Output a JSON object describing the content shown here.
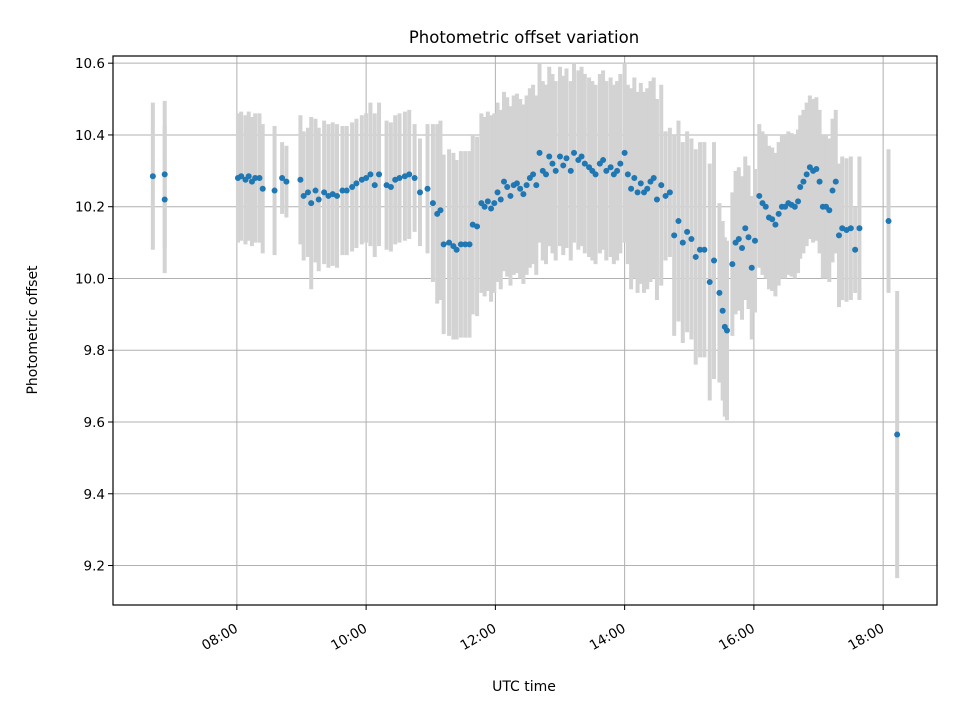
{
  "chart_data": {
    "type": "scatter",
    "title": "Photometric offset variation",
    "xlabel": "UTC time",
    "ylabel": "Photometric offset",
    "x_format": "time HH:MM",
    "xlim": [
      "06:05",
      "18:50"
    ],
    "ylim": [
      9.09,
      10.62
    ],
    "x_ticks": [
      "08:00",
      "10:00",
      "12:00",
      "14:00",
      "16:00",
      "18:00"
    ],
    "y_ticks": [
      "9.2",
      "9.4",
      "9.6",
      "9.8",
      "10.0",
      "10.2",
      "10.4",
      "10.6"
    ],
    "grid": true,
    "colors": {
      "marker": "#1f77b4",
      "errorbar": "#d3d3d3",
      "grid": "#b0b0b0"
    },
    "series": [
      {
        "points": [
          [
            "06:42",
            10.285,
            0.205
          ],
          [
            "06:53",
            10.22,
            0.205
          ],
          [
            "06:53",
            10.29,
            0.205
          ],
          [
            "08:01",
            10.28,
            0.18
          ],
          [
            "08:04",
            10.285,
            0.18
          ],
          [
            "08:08",
            10.275,
            0.18
          ],
          [
            "08:11",
            10.285,
            0.18
          ],
          [
            "08:14",
            10.27,
            0.18
          ],
          [
            "08:17",
            10.28,
            0.18
          ],
          [
            "08:21",
            10.28,
            0.18
          ],
          [
            "08:24",
            10.25,
            0.18
          ],
          [
            "08:35",
            10.245,
            0.18
          ],
          [
            "08:42",
            10.28,
            0.1
          ],
          [
            "08:46",
            10.27,
            0.1
          ],
          [
            "08:59",
            10.275,
            0.18
          ],
          [
            "09:02",
            10.23,
            0.18
          ],
          [
            "09:06",
            10.24,
            0.18
          ],
          [
            "09:09",
            10.21,
            0.24
          ],
          [
            "09:13",
            10.245,
            0.2
          ],
          [
            "09:16",
            10.22,
            0.2
          ],
          [
            "09:21",
            10.24,
            0.2
          ],
          [
            "09:25",
            10.23,
            0.2
          ],
          [
            "09:29",
            10.235,
            0.2
          ],
          [
            "09:33",
            10.23,
            0.2
          ],
          [
            "09:38",
            10.245,
            0.18
          ],
          [
            "09:42",
            10.245,
            0.18
          ],
          [
            "09:47",
            10.255,
            0.18
          ],
          [
            "09:51",
            10.265,
            0.18
          ],
          [
            "09:56",
            10.275,
            0.18
          ],
          [
            "10:00",
            10.28,
            0.18
          ],
          [
            "10:04",
            10.29,
            0.2
          ],
          [
            "10:08",
            10.26,
            0.2
          ],
          [
            "10:12",
            10.29,
            0.2
          ],
          [
            "10:19",
            10.26,
            0.18
          ],
          [
            "10:23",
            10.255,
            0.18
          ],
          [
            "10:27",
            10.275,
            0.18
          ],
          [
            "10:31",
            10.28,
            0.18
          ],
          [
            "10:36",
            10.285,
            0.18
          ],
          [
            "10:40",
            10.29,
            0.18
          ],
          [
            "10:45",
            10.28,
            0.15
          ],
          [
            "10:50",
            10.24,
            0.15
          ],
          [
            "10:57",
            10.25,
            0.18
          ],
          [
            "11:02",
            10.21,
            0.22
          ],
          [
            "11:06",
            10.18,
            0.25
          ],
          [
            "11:09",
            10.19,
            0.25
          ],
          [
            "11:12",
            10.095,
            0.25
          ],
          [
            "11:17",
            10.1,
            0.26
          ],
          [
            "11:21",
            10.09,
            0.26
          ],
          [
            "11:24",
            10.08,
            0.25
          ],
          [
            "11:28",
            10.095,
            0.26
          ],
          [
            "11:32",
            10.095,
            0.26
          ],
          [
            "11:36",
            10.095,
            0.26
          ],
          [
            "11:39",
            10.15,
            0.25
          ],
          [
            "11:43",
            10.145,
            0.25
          ],
          [
            "11:47",
            10.21,
            0.25
          ],
          [
            "11:50",
            10.2,
            0.25
          ],
          [
            "11:53",
            10.215,
            0.25
          ],
          [
            "11:56",
            10.195,
            0.26
          ],
          [
            "11:59",
            10.21,
            0.25
          ],
          [
            "12:02",
            10.24,
            0.25
          ],
          [
            "12:05",
            10.22,
            0.25
          ],
          [
            "12:08",
            10.27,
            0.25
          ],
          [
            "12:11",
            10.255,
            0.25
          ],
          [
            "12:14",
            10.23,
            0.25
          ],
          [
            "12:17",
            10.26,
            0.25
          ],
          [
            "12:20",
            10.265,
            0.25
          ],
          [
            "12:23",
            10.25,
            0.25
          ],
          [
            "12:26",
            10.235,
            0.25
          ],
          [
            "12:29",
            10.26,
            0.25
          ],
          [
            "12:32",
            10.28,
            0.25
          ],
          [
            "12:35",
            10.29,
            0.25
          ],
          [
            "12:38",
            10.26,
            0.25
          ],
          [
            "12:41",
            10.35,
            0.25
          ],
          [
            "12:44",
            10.3,
            0.25
          ],
          [
            "12:47",
            10.29,
            0.25
          ],
          [
            "12:50",
            10.34,
            0.25
          ],
          [
            "12:53",
            10.32,
            0.25
          ],
          [
            "12:56",
            10.3,
            0.25
          ],
          [
            "13:00",
            10.34,
            0.25
          ],
          [
            "13:03",
            10.315,
            0.25
          ],
          [
            "13:06",
            10.335,
            0.25
          ],
          [
            "13:10",
            10.3,
            0.25
          ],
          [
            "13:13",
            10.35,
            0.25
          ],
          [
            "13:17",
            10.33,
            0.25
          ],
          [
            "13:20",
            10.34,
            0.25
          ],
          [
            "13:23",
            10.32,
            0.25
          ],
          [
            "13:27",
            10.31,
            0.25
          ],
          [
            "13:30",
            10.3,
            0.25
          ],
          [
            "13:33",
            10.29,
            0.25
          ],
          [
            "13:37",
            10.32,
            0.25
          ],
          [
            "13:40",
            10.33,
            0.25
          ],
          [
            "13:43",
            10.3,
            0.25
          ],
          [
            "13:47",
            10.31,
            0.25
          ],
          [
            "13:50",
            10.29,
            0.25
          ],
          [
            "13:53",
            10.3,
            0.25
          ],
          [
            "13:56",
            10.32,
            0.25
          ],
          [
            "14:00",
            10.35,
            0.25
          ],
          [
            "14:03",
            10.29,
            0.25
          ],
          [
            "14:06",
            10.25,
            0.28
          ],
          [
            "14:09",
            10.28,
            0.28
          ],
          [
            "14:12",
            10.24,
            0.28
          ],
          [
            "14:15",
            10.265,
            0.28
          ],
          [
            "14:18",
            10.24,
            0.28
          ],
          [
            "14:21",
            10.25,
            0.28
          ],
          [
            "14:24",
            10.27,
            0.28
          ],
          [
            "14:27",
            10.28,
            0.28
          ],
          [
            "14:30",
            10.22,
            0.28
          ],
          [
            "14:34",
            10.26,
            0.28
          ],
          [
            "14:38",
            10.23,
            0.18
          ],
          [
            "14:42",
            10.24,
            0.18
          ],
          [
            "14:46",
            10.12,
            0.28
          ],
          [
            "14:50",
            10.16,
            0.28
          ],
          [
            "14:54",
            10.1,
            0.28
          ],
          [
            "14:58",
            10.13,
            0.28
          ],
          [
            "15:02",
            10.11,
            0.28
          ],
          [
            "15:06",
            10.06,
            0.3
          ],
          [
            "15:10",
            10.08,
            0.3
          ],
          [
            "15:14",
            10.08,
            0.3
          ],
          [
            "15:19",
            9.99,
            0.33
          ],
          [
            "15:23",
            10.05,
            0.33
          ],
          [
            "15:28",
            9.96,
            0.25
          ],
          [
            "15:31",
            9.91,
            0.25
          ],
          [
            "15:33",
            9.865,
            0.25
          ],
          [
            "15:35",
            9.855,
            0.25
          ],
          [
            "15:40",
            10.04,
            0.2
          ],
          [
            "15:43",
            10.1,
            0.2
          ],
          [
            "15:46",
            10.11,
            0.2
          ],
          [
            "15:49",
            10.085,
            0.2
          ],
          [
            "15:52",
            10.14,
            0.2
          ],
          [
            "15:55",
            10.115,
            0.2
          ],
          [
            "15:58",
            10.03,
            0.2
          ],
          [
            "16:01",
            10.105,
            0.2
          ],
          [
            "16:05",
            10.23,
            0.2
          ],
          [
            "16:08",
            10.21,
            0.2
          ],
          [
            "16:11",
            10.2,
            0.2
          ],
          [
            "16:14",
            10.17,
            0.2
          ],
          [
            "16:17",
            10.165,
            0.2
          ],
          [
            "16:20",
            10.15,
            0.2
          ],
          [
            "16:23",
            10.18,
            0.2
          ],
          [
            "16:26",
            10.2,
            0.2
          ],
          [
            "16:29",
            10.2,
            0.2
          ],
          [
            "16:32",
            10.21,
            0.2
          ],
          [
            "16:35",
            10.205,
            0.2
          ],
          [
            "16:38",
            10.2,
            0.2
          ],
          [
            "16:41",
            10.215,
            0.2
          ],
          [
            "16:43",
            10.255,
            0.2
          ],
          [
            "16:46",
            10.27,
            0.2
          ],
          [
            "16:49",
            10.29,
            0.2
          ],
          [
            "16:52",
            10.31,
            0.2
          ],
          [
            "16:55",
            10.3,
            0.2
          ],
          [
            "16:58",
            10.305,
            0.2
          ],
          [
            "17:01",
            10.27,
            0.2
          ],
          [
            "17:04",
            10.2,
            0.2
          ],
          [
            "17:07",
            10.2,
            0.2
          ],
          [
            "17:10",
            10.19,
            0.2
          ],
          [
            "17:13",
            10.245,
            0.2
          ],
          [
            "17:16",
            10.27,
            0.2
          ],
          [
            "17:19",
            10.12,
            0.2
          ],
          [
            "17:22",
            10.14,
            0.2
          ],
          [
            "17:26",
            10.135,
            0.2
          ],
          [
            "17:30",
            10.14,
            0.2
          ],
          [
            "17:34",
            10.08,
            0.12
          ],
          [
            "17:38",
            10.14,
            0.2
          ],
          [
            "18:05",
            10.16,
            0.2
          ],
          [
            "18:13",
            9.565,
            0.4
          ]
        ]
      }
    ]
  }
}
